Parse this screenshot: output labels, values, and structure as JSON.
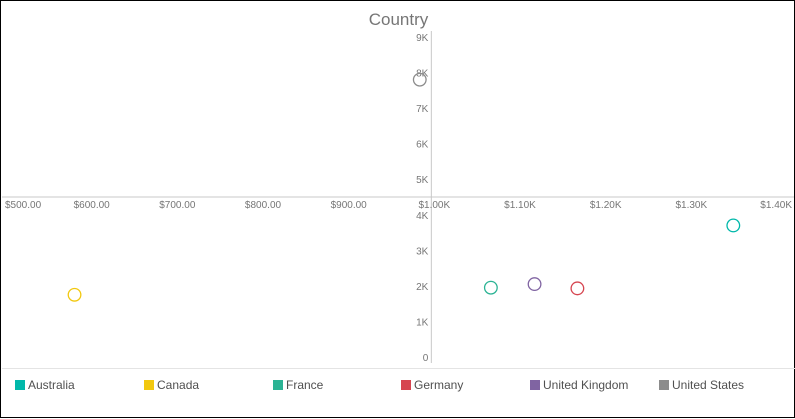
{
  "chart_data": {
    "type": "scatter",
    "title": "Country",
    "xlabel": "",
    "ylabel": "",
    "xlim": [
      500,
      1400
    ],
    "ylim": [
      0,
      9000
    ],
    "x_ticks": [
      {
        "value": 500,
        "label": "$500.00"
      },
      {
        "value": 600,
        "label": "$600.00"
      },
      {
        "value": 700,
        "label": "$700.00"
      },
      {
        "value": 800,
        "label": "$800.00"
      },
      {
        "value": 900,
        "label": "$900.00"
      },
      {
        "value": 1000,
        "label": "$1.00K"
      },
      {
        "value": 1100,
        "label": "$1.10K"
      },
      {
        "value": 1200,
        "label": "$1.20K"
      },
      {
        "value": 1300,
        "label": "$1.30K"
      },
      {
        "value": 1400,
        "label": "$1.40K"
      }
    ],
    "y_ticks": [
      {
        "value": 0,
        "label": "0"
      },
      {
        "value": 1000,
        "label": "1K"
      },
      {
        "value": 2000,
        "label": "2K"
      },
      {
        "value": 3000,
        "label": "3K"
      },
      {
        "value": 4000,
        "label": "4K"
      },
      {
        "value": 5000,
        "label": "5K"
      },
      {
        "value": 6000,
        "label": "6K"
      },
      {
        "value": 7000,
        "label": "7K"
      },
      {
        "value": 8000,
        "label": "8K"
      },
      {
        "value": 9000,
        "label": "9K"
      }
    ],
    "x_axis_crosses_y": 4500,
    "y_axis_crosses_x": 1000,
    "grid": false,
    "legend_position": "bottom",
    "marker": "hollow-circle",
    "series": [
      {
        "name": "Australia",
        "color": "#01B8AA",
        "x": 1349,
        "y": 3700
      },
      {
        "name": "Canada",
        "color": "#F2C80F",
        "x": 580,
        "y": 1750
      },
      {
        "name": "France",
        "color": "#2BB394",
        "x": 1066,
        "y": 1950
      },
      {
        "name": "Germany",
        "color": "#D64550",
        "x": 1167,
        "y": 1930
      },
      {
        "name": "United Kingdom",
        "color": "#8064A2",
        "x": 1117,
        "y": 2050
      },
      {
        "name": "United States",
        "color": "#8C8C8C",
        "x": 983,
        "y": 7800
      }
    ]
  }
}
